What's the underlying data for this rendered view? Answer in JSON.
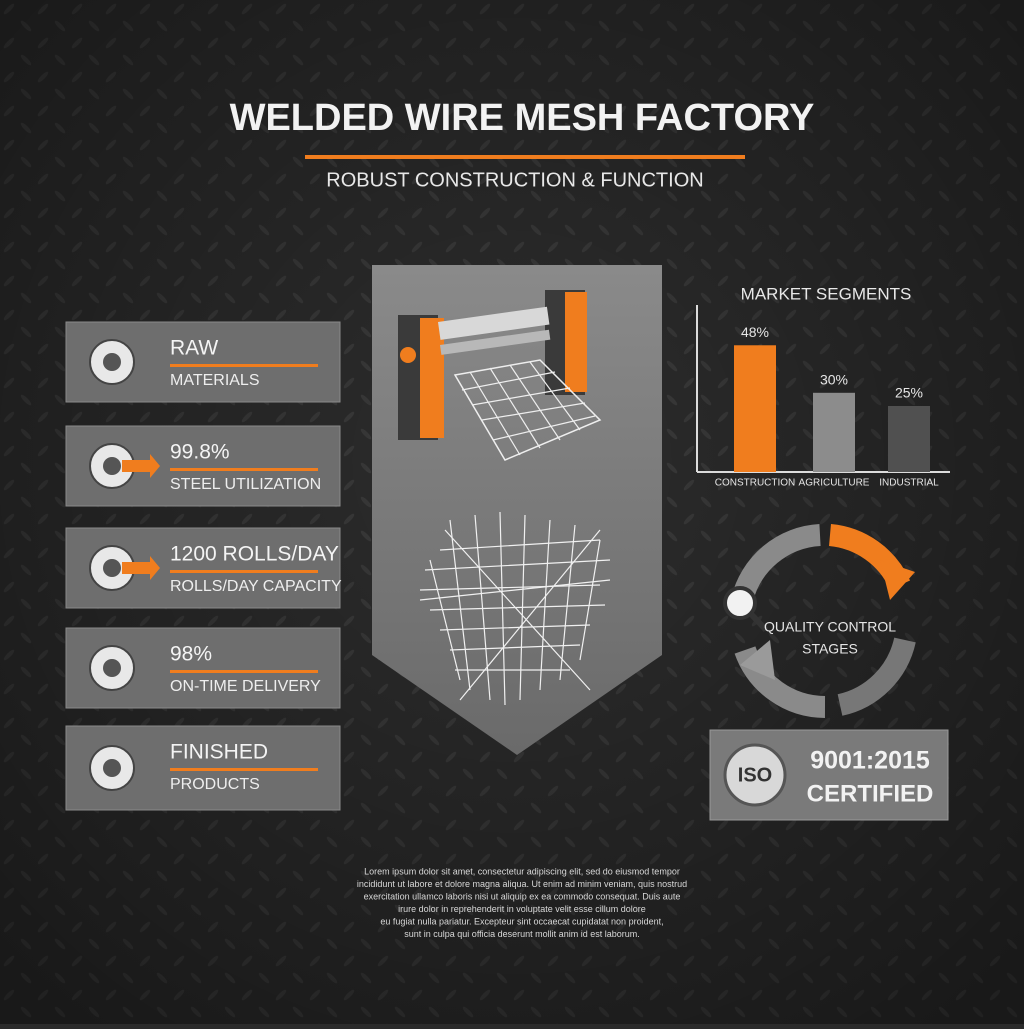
{
  "header": {
    "title": "WELDED WIRE MESH FACTORY",
    "subtitle": "ROBUST CONSTRUCTION & FUNCTION"
  },
  "cards": [
    {
      "title": "RAW",
      "subtitle": "MATERIALS"
    },
    {
      "title": "99.8%",
      "subtitle": "STEEL UTILIZATION"
    },
    {
      "title": "1200 ROLLS/DAY",
      "subtitle": "ROLLS/DAY CAPACITY"
    },
    {
      "title": "98%",
      "subtitle": "ON-TIME DELIVERY"
    },
    {
      "title": "FINISHED",
      "subtitle": "PRODUCTS"
    }
  ],
  "chart_data": {
    "type": "bar",
    "title": "MARKET SEGMENTS",
    "categories": [
      "CONSTRUCTION",
      "AGRICULTURE",
      "INDUSTRIAL"
    ],
    "values": [
      48,
      30,
      25
    ],
    "value_labels": [
      "48%",
      "30%",
      "25%"
    ],
    "colors": [
      "#f07d1e",
      "#8c8c8c",
      "#505050"
    ],
    "ylim": [
      0,
      50
    ]
  },
  "quality": {
    "line1": "QUALITY CONTROL",
    "line2": "STAGES"
  },
  "certification": {
    "badge": "ISO",
    "standard": "9001:2015",
    "status": "CERTIFIED"
  },
  "footer": {
    "lines": [
      "Lorem ipsum dolor sit amet, consectetur adipiscing elit, sed do eiusmod tempor",
      "incididunt ut labore et dolore magna aliqua. Ut enim ad minim veniam, quis nostrud",
      "exercitation ullamco laboris nisi ut aliquip ex ea commodo consequat. Duis aute",
      "irure dolor in reprehenderit in voluptate velit esse cillum dolore",
      "eu fugiat nulla pariatur. Excepteur sint occaecat cupidatat non proident,",
      "sunt in culpa qui officia deserunt mollit anim id est laborum."
    ]
  }
}
